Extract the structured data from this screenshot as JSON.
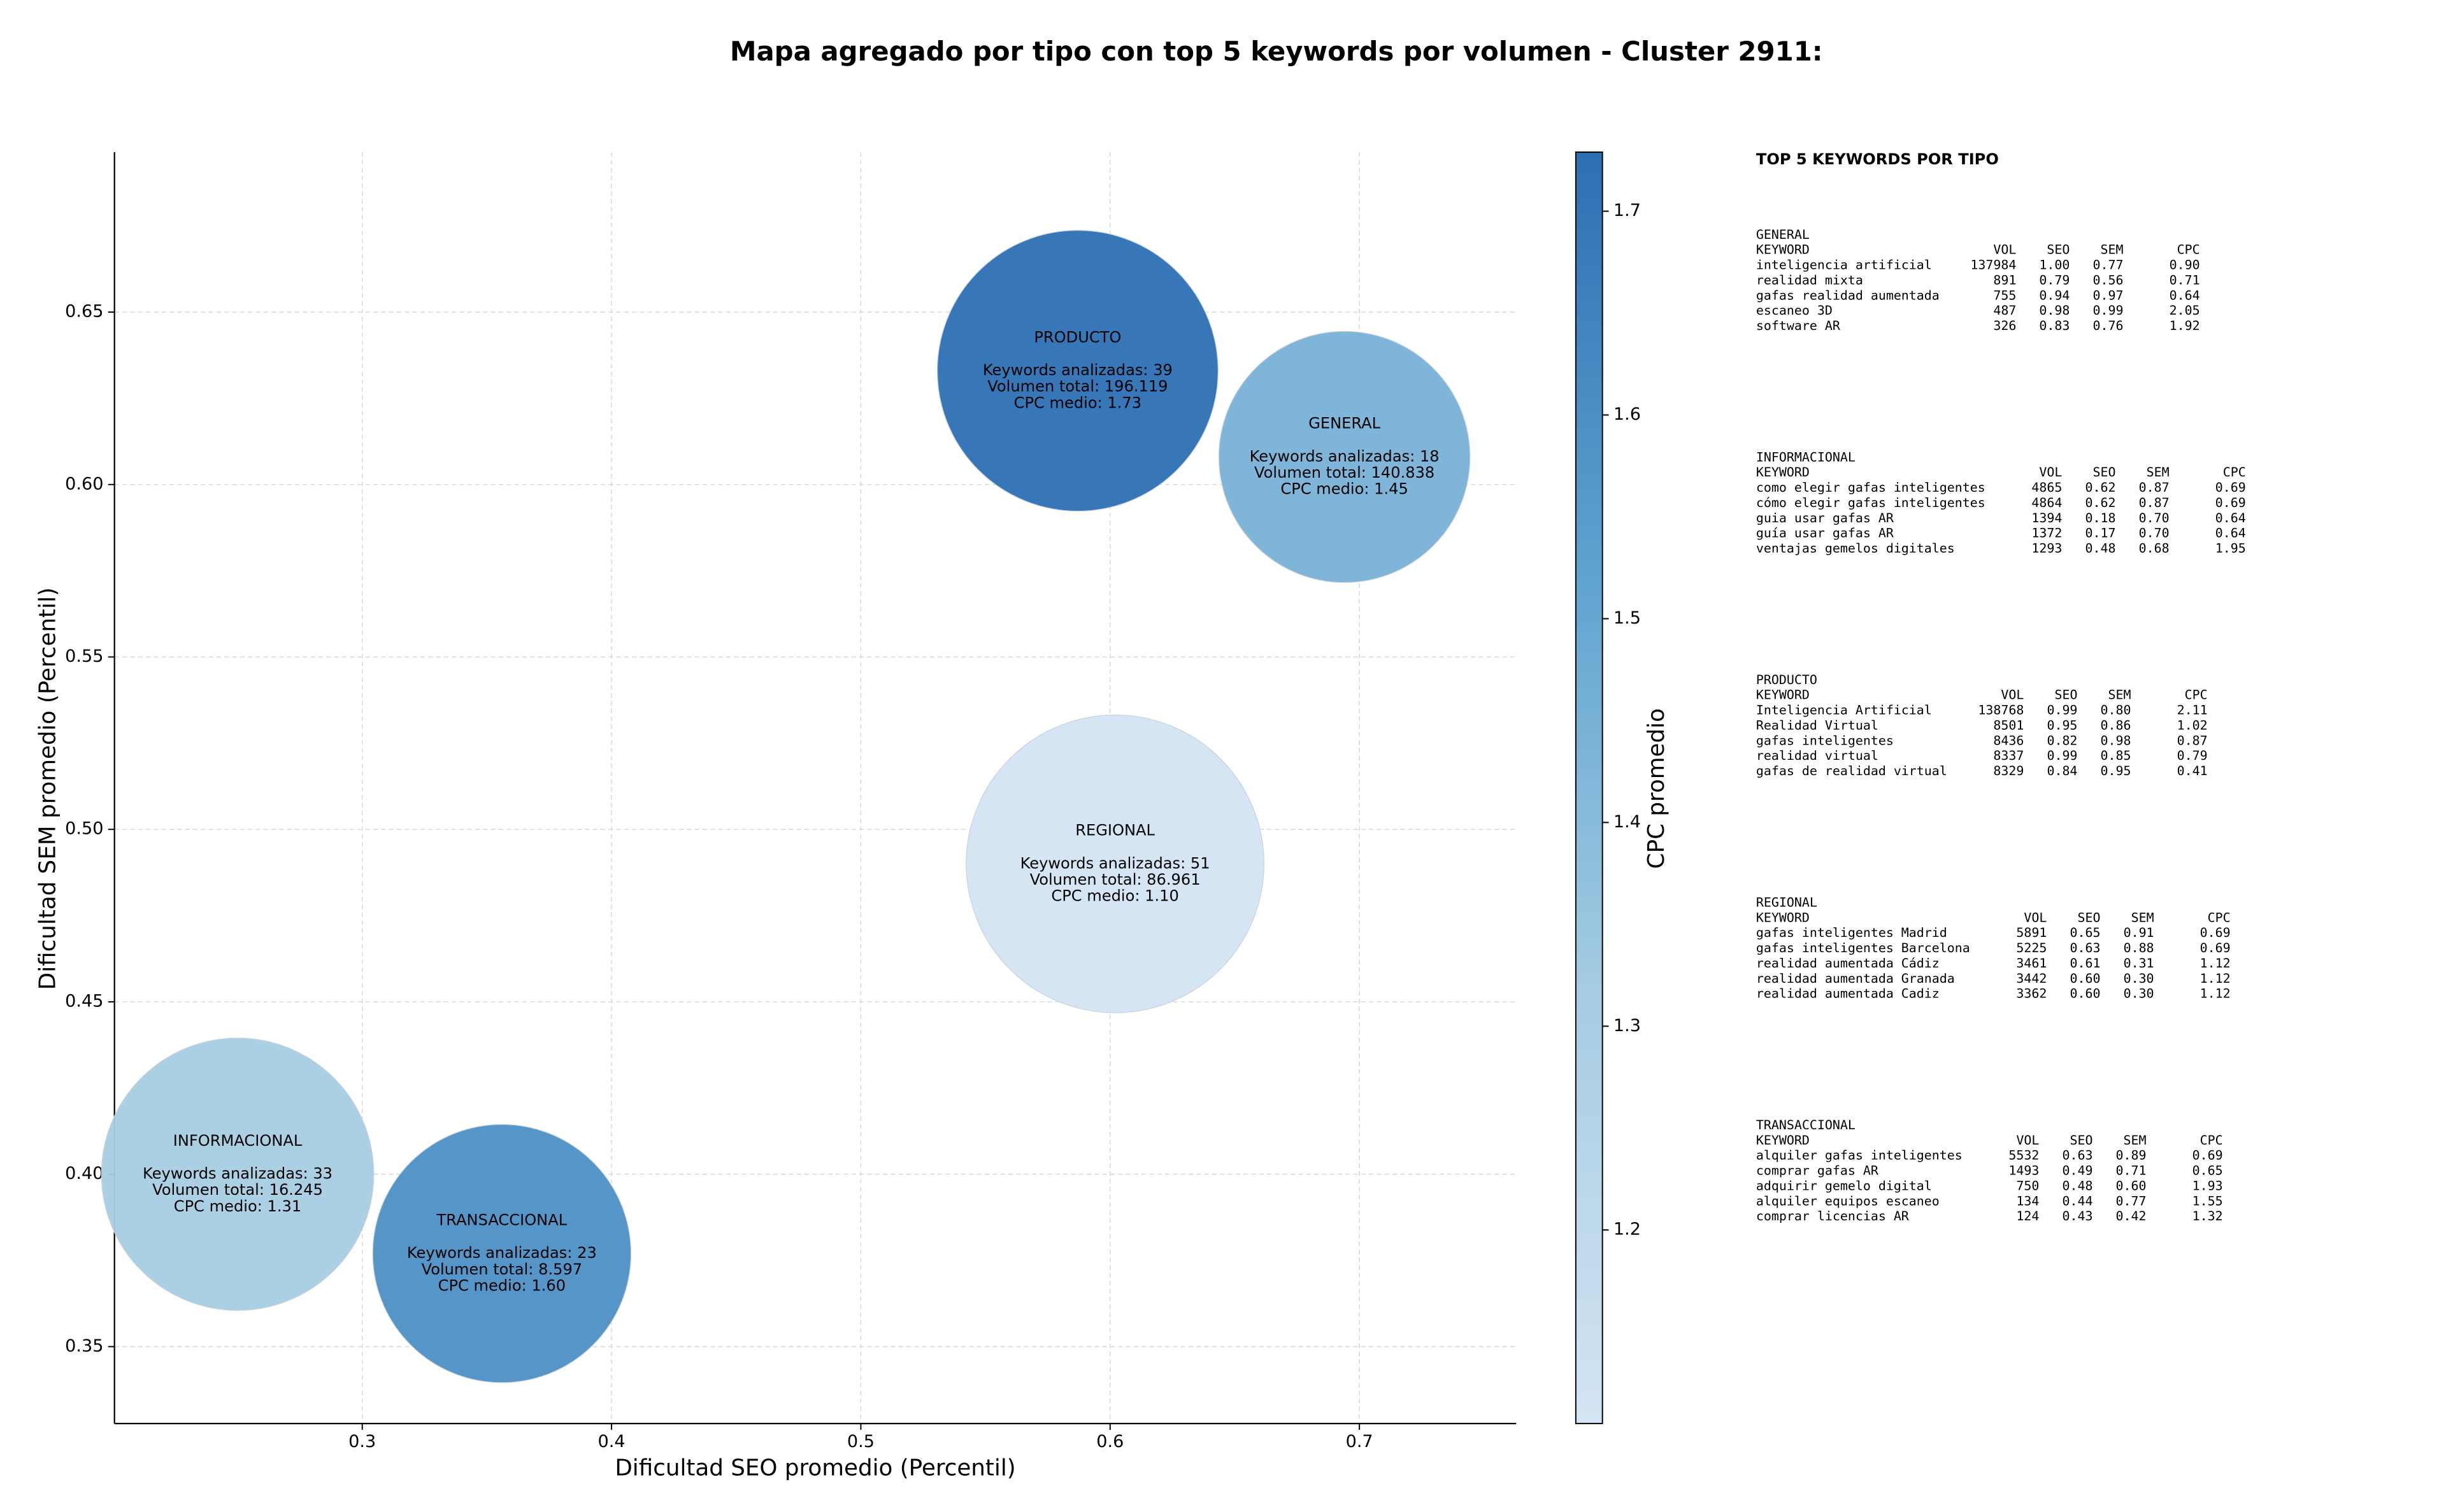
{
  "chart_data": {
    "type": "scatter",
    "title": "Mapa agregado por tipo con top 5 keywords por volumen - Cluster 2911:",
    "x_label": "Dificultad SEO promedio (Percentil)",
    "y_label": "Dificultad SEM promedio (Percentil)",
    "colorbar_label": "CPC promedio",
    "categories": [
      "PRODUCTO",
      "GENERAL",
      "REGIONAL",
      "INFORMACIONAL",
      "TRANSACCIONAL"
    ],
    "x": [
      0.587,
      0.694,
      0.602,
      0.25,
      0.356
    ],
    "y": [
      0.633,
      0.608,
      0.49,
      0.4,
      0.377
    ],
    "keywords": [
      39,
      18,
      51,
      33,
      23
    ],
    "cpc": [
      1.73,
      1.45,
      1.1,
      1.31,
      1.6
    ],
    "annotations": [
      [
        "Keywords analizadas: 39",
        "Volumen total: 196.119",
        "CPC medio: 1.73"
      ],
      [
        "Keywords analizadas: 18",
        "Volumen total: 140.838",
        "CPC medio: 1.45"
      ],
      [
        "Keywords analizadas: 51",
        "Volumen total: 86.961",
        "CPC medio: 1.10"
      ],
      [
        "Keywords analizadas: 33",
        "Volumen total: 16.245",
        "CPC medio: 1.31"
      ],
      [
        "Keywords analizadas: 23",
        "Volumen total: 8.597",
        "CPC medio: 1.60"
      ]
    ],
    "xlim": [
      0.2006,
      0.7629
    ],
    "ylim": [
      0.3277,
      0.6964
    ],
    "xticks": [
      0.3,
      0.4,
      0.5,
      0.6,
      0.7
    ],
    "yticks": [
      0.35,
      {
        "value": 0.4,
        "label": "0.40"
      },
      0.45,
      {
        "value": 0.5,
        "label": "0.50"
      },
      0.55,
      {
        "value": 0.6,
        "label": "0.60"
      },
      0.65
    ],
    "clim": [
      1.105,
      1.729
    ],
    "cticks": [
      1.2,
      1.3,
      1.4,
      1.5,
      1.6,
      1.7
    ],
    "colorscale": [
      "#d4e4f3",
      "#a6cde3",
      "#5fa3d0",
      "#2c6fb3"
    ],
    "grid": true
  },
  "panel": {
    "title": "TOP 5 KEYWORDS POR TIPO",
    "columns": [
      "KEYWORD",
      "VOL",
      "SEO",
      "SEM",
      "CPC"
    ],
    "tables": [
      {
        "title": "GENERAL",
        "rows": [
          [
            "inteligencia artificial",
            "137984",
            "1.00",
            "0.77",
            "0.90"
          ],
          [
            "realidad mixta",
            "891",
            "0.79",
            "0.56",
            "0.71"
          ],
          [
            "gafas realidad aumentada",
            "755",
            "0.94",
            "0.97",
            "0.64"
          ],
          [
            "escaneo 3D",
            "487",
            "0.98",
            "0.99",
            "2.05"
          ],
          [
            "software AR",
            "326",
            "0.83",
            "0.76",
            "1.92"
          ]
        ]
      },
      {
        "title": "INFORMACIONAL",
        "rows": [
          [
            "como elegir gafas inteligentes",
            "4865",
            "0.62",
            "0.87",
            "0.69"
          ],
          [
            "cómo elegir gafas inteligentes",
            "4864",
            "0.62",
            "0.87",
            "0.69"
          ],
          [
            "guia usar gafas AR",
            "1394",
            "0.18",
            "0.70",
            "0.64"
          ],
          [
            "guía usar gafas AR",
            "1372",
            "0.17",
            "0.70",
            "0.64"
          ],
          [
            "ventajas gemelos digitales",
            "1293",
            "0.48",
            "0.68",
            "1.95"
          ]
        ]
      },
      {
        "title": "PRODUCTO",
        "rows": [
          [
            "Inteligencia Artificial",
            "138768",
            "0.99",
            "0.80",
            "2.11"
          ],
          [
            "Realidad Virtual",
            "8501",
            "0.95",
            "0.86",
            "1.02"
          ],
          [
            "gafas inteligentes",
            "8436",
            "0.82",
            "0.98",
            "0.87"
          ],
          [
            "realidad virtual",
            "8337",
            "0.99",
            "0.85",
            "0.79"
          ],
          [
            "gafas de realidad virtual",
            "8329",
            "0.84",
            "0.95",
            "0.41"
          ]
        ]
      },
      {
        "title": "REGIONAL",
        "rows": [
          [
            "gafas inteligentes Madrid",
            "5891",
            "0.65",
            "0.91",
            "0.69"
          ],
          [
            "gafas inteligentes Barcelona",
            "5225",
            "0.63",
            "0.88",
            "0.69"
          ],
          [
            "realidad aumentada Cádiz",
            "3461",
            "0.61",
            "0.31",
            "1.12"
          ],
          [
            "realidad aumentada Granada",
            "3442",
            "0.60",
            "0.30",
            "1.12"
          ],
          [
            "realidad aumentada Cadiz",
            "3362",
            "0.60",
            "0.30",
            "1.12"
          ]
        ]
      },
      {
        "title": "TRANSACCIONAL",
        "rows": [
          [
            "alquiler gafas inteligentes",
            "5532",
            "0.63",
            "0.89",
            "0.69"
          ],
          [
            "comprar gafas AR",
            "1493",
            "0.49",
            "0.71",
            "0.65"
          ],
          [
            "adquirir gemelo digital",
            "750",
            "0.48",
            "0.60",
            "1.93"
          ],
          [
            "alquiler equipos escaneo",
            "134",
            "0.44",
            "0.77",
            "1.55"
          ],
          [
            "comprar licencias AR",
            "124",
            "0.43",
            "0.42",
            "1.32"
          ]
        ]
      }
    ]
  }
}
